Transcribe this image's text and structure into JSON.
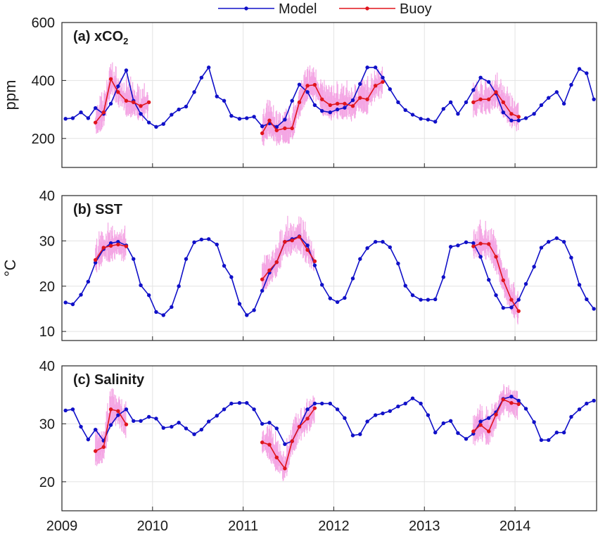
{
  "legend": [
    {
      "label": "Model",
      "color": "#1010c8"
    },
    {
      "label": "Buoy",
      "color": "#e0141c"
    }
  ],
  "raw_color": "#f4a6e4",
  "chart_data": [
    {
      "type": "line",
      "title": "(a) xCO",
      "title_subscript": "2",
      "ylabel": "ppm",
      "ylim": [
        100,
        600
      ],
      "yticks": [
        200,
        400,
        600
      ],
      "xlim": [
        2009.0,
        2014.9
      ],
      "xticks": [
        2009,
        2010,
        2011,
        2012,
        2013,
        2014
      ],
      "grid": true,
      "series": [
        {
          "name": "Model",
          "color": "#1010c8",
          "x": [
            2009.04,
            2009.12,
            2009.21,
            2009.29,
            2009.37,
            2009.46,
            2009.54,
            2009.62,
            2009.71,
            2009.79,
            2009.87,
            2009.96,
            2010.04,
            2010.12,
            2010.21,
            2010.29,
            2010.37,
            2010.46,
            2010.54,
            2010.62,
            2010.71,
            2010.79,
            2010.87,
            2010.96,
            2011.04,
            2011.12,
            2011.21,
            2011.29,
            2011.37,
            2011.46,
            2011.54,
            2011.62,
            2011.71,
            2011.79,
            2011.87,
            2011.96,
            2012.04,
            2012.12,
            2012.21,
            2012.29,
            2012.37,
            2012.46,
            2012.54,
            2012.62,
            2012.71,
            2012.79,
            2012.87,
            2012.96,
            2013.04,
            2013.12,
            2013.21,
            2013.29,
            2013.37,
            2013.46,
            2013.54,
            2013.62,
            2013.71,
            2013.79,
            2013.87,
            2013.96,
            2014.04,
            2014.12,
            2014.21,
            2014.29,
            2014.37,
            2014.46,
            2014.54,
            2014.62,
            2014.71,
            2014.79,
            2014.87
          ],
          "y": [
            268,
            270,
            290,
            270,
            305,
            285,
            320,
            380,
            435,
            330,
            285,
            255,
            240,
            250,
            282,
            300,
            310,
            360,
            410,
            445,
            345,
            330,
            278,
            268,
            270,
            275,
            242,
            252,
            240,
            265,
            330,
            386,
            360,
            315,
            295,
            290,
            300,
            306,
            332,
            388,
            445,
            445,
            410,
            370,
            325,
            298,
            282,
            268,
            265,
            258,
            302,
            325,
            285,
            325,
            367,
            410,
            395,
            355,
            290,
            262,
            262,
            270,
            285,
            315,
            340,
            360,
            320,
            385,
            440,
            425,
            335
          ]
        },
        {
          "name": "Buoy",
          "color": "#e0141c",
          "x": [
            2009.37,
            2009.46,
            2009.54,
            2009.62,
            2009.71,
            2009.79,
            2009.87,
            2009.96,
            2011.21,
            2011.29,
            2011.37,
            2011.46,
            2011.54,
            2011.62,
            2011.71,
            2011.79,
            2011.87,
            2011.96,
            2012.04,
            2012.12,
            2012.21,
            2012.29,
            2012.37,
            2012.46,
            2012.54,
            2013.54,
            2013.62,
            2013.71,
            2013.79,
            2013.87,
            2013.96,
            2014.04
          ],
          "y": [
            255,
            290,
            405,
            360,
            330,
            325,
            312,
            325,
            218,
            262,
            228,
            235,
            235,
            325,
            382,
            385,
            335,
            315,
            320,
            320,
            312,
            340,
            335,
            382,
            395,
            325,
            335,
            335,
            360,
            325,
            285,
            275
          ]
        }
      ]
    },
    {
      "type": "line",
      "title": "(b) SST",
      "ylabel": "°C",
      "ylim": [
        8,
        40
      ],
      "yticks": [
        10,
        20,
        30,
        40
      ],
      "xlim": [
        2009.0,
        2014.9
      ],
      "xticks": [
        2009,
        2010,
        2011,
        2012,
        2013,
        2014
      ],
      "grid": true,
      "series": [
        {
          "name": "Model",
          "color": "#1010c8",
          "x": [
            2009.04,
            2009.12,
            2009.21,
            2009.29,
            2009.37,
            2009.46,
            2009.54,
            2009.62,
            2009.71,
            2009.79,
            2009.87,
            2009.96,
            2010.04,
            2010.12,
            2010.21,
            2010.29,
            2010.37,
            2010.46,
            2010.54,
            2010.62,
            2010.71,
            2010.79,
            2010.87,
            2010.96,
            2011.04,
            2011.12,
            2011.21,
            2011.29,
            2011.37,
            2011.46,
            2011.54,
            2011.62,
            2011.71,
            2011.79,
            2011.87,
            2011.96,
            2012.04,
            2012.12,
            2012.21,
            2012.29,
            2012.37,
            2012.46,
            2012.54,
            2012.62,
            2012.71,
            2012.79,
            2012.87,
            2012.96,
            2013.04,
            2013.12,
            2013.21,
            2013.29,
            2013.37,
            2013.46,
            2013.54,
            2013.62,
            2013.71,
            2013.79,
            2013.87,
            2013.96,
            2014.04,
            2014.12,
            2014.21,
            2014.29,
            2014.37,
            2014.46,
            2014.54,
            2014.62,
            2014.71,
            2014.79,
            2014.87
          ],
          "y": [
            16.4,
            16.0,
            18.1,
            21.0,
            25.2,
            28.2,
            29.5,
            29.8,
            29.0,
            26.0,
            20.2,
            18.0,
            14.3,
            13.6,
            15.4,
            20.0,
            26.0,
            29.7,
            30.3,
            30.4,
            29.2,
            24.5,
            22.0,
            16.1,
            13.6,
            14.7,
            19.0,
            23.0,
            25.3,
            29.8,
            30.4,
            31.0,
            29.0,
            24.6,
            20.3,
            17.3,
            16.5,
            17.4,
            21.7,
            26.0,
            28.4,
            29.8,
            29.8,
            28.6,
            25.0,
            20.1,
            18.0,
            17.0,
            17.0,
            17.1,
            22.0,
            28.7,
            29.0,
            29.7,
            29.5,
            26.5,
            21.4,
            18.0,
            15.2,
            15.3,
            17.0,
            20.5,
            24.3,
            28.5,
            29.8,
            30.6,
            29.8,
            26.3,
            20.3,
            17.1,
            15.0
          ]
        },
        {
          "name": "Buoy",
          "color": "#e0141c",
          "x": [
            2009.37,
            2009.46,
            2009.54,
            2009.62,
            2009.71,
            2011.21,
            2011.29,
            2011.37,
            2011.46,
            2011.54,
            2011.62,
            2011.71,
            2011.79,
            2013.54,
            2013.62,
            2013.71,
            2013.79,
            2013.87,
            2013.96,
            2014.04
          ],
          "y": [
            25.8,
            28.5,
            28.9,
            29.2,
            28.8,
            21.5,
            23.5,
            25.3,
            29.8,
            30.1,
            30.9,
            28.0,
            25.5,
            28.8,
            29.4,
            29.3,
            26.5,
            21.3,
            17.0,
            14.5
          ]
        }
      ]
    },
    {
      "type": "line",
      "title": "(c) Salinity",
      "ylabel": "",
      "ylim": [
        15,
        40
      ],
      "yticks": [
        20,
        30,
        40
      ],
      "xlim": [
        2009.0,
        2014.9
      ],
      "xticks": [
        2009,
        2010,
        2011,
        2012,
        2013,
        2014
      ],
      "xticklabels": [
        "2009",
        "2010",
        "2011",
        "2012",
        "2013",
        "2014"
      ],
      "grid": true,
      "series": [
        {
          "name": "Model",
          "color": "#1010c8",
          "x": [
            2009.04,
            2009.12,
            2009.21,
            2009.29,
            2009.37,
            2009.46,
            2009.54,
            2009.62,
            2009.71,
            2009.79,
            2009.87,
            2009.96,
            2010.04,
            2010.12,
            2010.21,
            2010.29,
            2010.37,
            2010.46,
            2010.54,
            2010.62,
            2010.71,
            2010.79,
            2010.87,
            2010.96,
            2011.04,
            2011.12,
            2011.21,
            2011.29,
            2011.37,
            2011.46,
            2011.54,
            2011.62,
            2011.71,
            2011.79,
            2011.87,
            2011.96,
            2012.04,
            2012.12,
            2012.21,
            2012.29,
            2012.37,
            2012.46,
            2012.54,
            2012.62,
            2012.71,
            2012.79,
            2012.87,
            2012.96,
            2013.04,
            2013.12,
            2013.21,
            2013.29,
            2013.37,
            2013.46,
            2013.54,
            2013.62,
            2013.71,
            2013.79,
            2013.87,
            2013.96,
            2014.04,
            2014.12,
            2014.21,
            2014.29,
            2014.37,
            2014.46,
            2014.54,
            2014.62,
            2014.71,
            2014.79,
            2014.87
          ],
          "y": [
            32.3,
            32.5,
            29.5,
            27.3,
            29.0,
            27.1,
            29.8,
            31.5,
            32.5,
            30.5,
            30.5,
            31.2,
            30.9,
            29.3,
            29.5,
            30.2,
            29.2,
            28.2,
            29.0,
            30.4,
            31.4,
            32.5,
            33.5,
            33.6,
            33.6,
            32.5,
            30.0,
            30.2,
            29.2,
            26.5,
            27.0,
            29.5,
            32.5,
            33.5,
            33.5,
            33.5,
            32.5,
            31.0,
            28.0,
            28.2,
            30.4,
            31.5,
            31.8,
            32.2,
            33.0,
            33.5,
            34.4,
            33.5,
            31.5,
            28.5,
            30.1,
            30.5,
            28.4,
            27.4,
            28.3,
            30.4,
            31.0,
            32.0,
            34.3,
            34.7,
            34.0,
            32.6,
            30.3,
            27.2,
            27.2,
            28.5,
            28.5,
            31.2,
            32.5,
            33.5,
            34.0
          ]
        },
        {
          "name": "Buoy",
          "color": "#e0141c",
          "x": [
            2009.37,
            2009.46,
            2009.54,
            2009.62,
            2009.71,
            2011.21,
            2011.29,
            2011.37,
            2011.46,
            2011.54,
            2011.62,
            2011.71,
            2011.79,
            2013.54,
            2013.62,
            2013.71,
            2013.79,
            2013.87,
            2013.96,
            2014.04
          ],
          "y": [
            25.3,
            26.0,
            32.5,
            32.2,
            29.9,
            26.8,
            26.4,
            24.2,
            22.3,
            27.0,
            29.5,
            30.9,
            32.7,
            28.7,
            29.8,
            28.7,
            31.6,
            34.2,
            33.6,
            33.4
          ]
        }
      ]
    }
  ]
}
